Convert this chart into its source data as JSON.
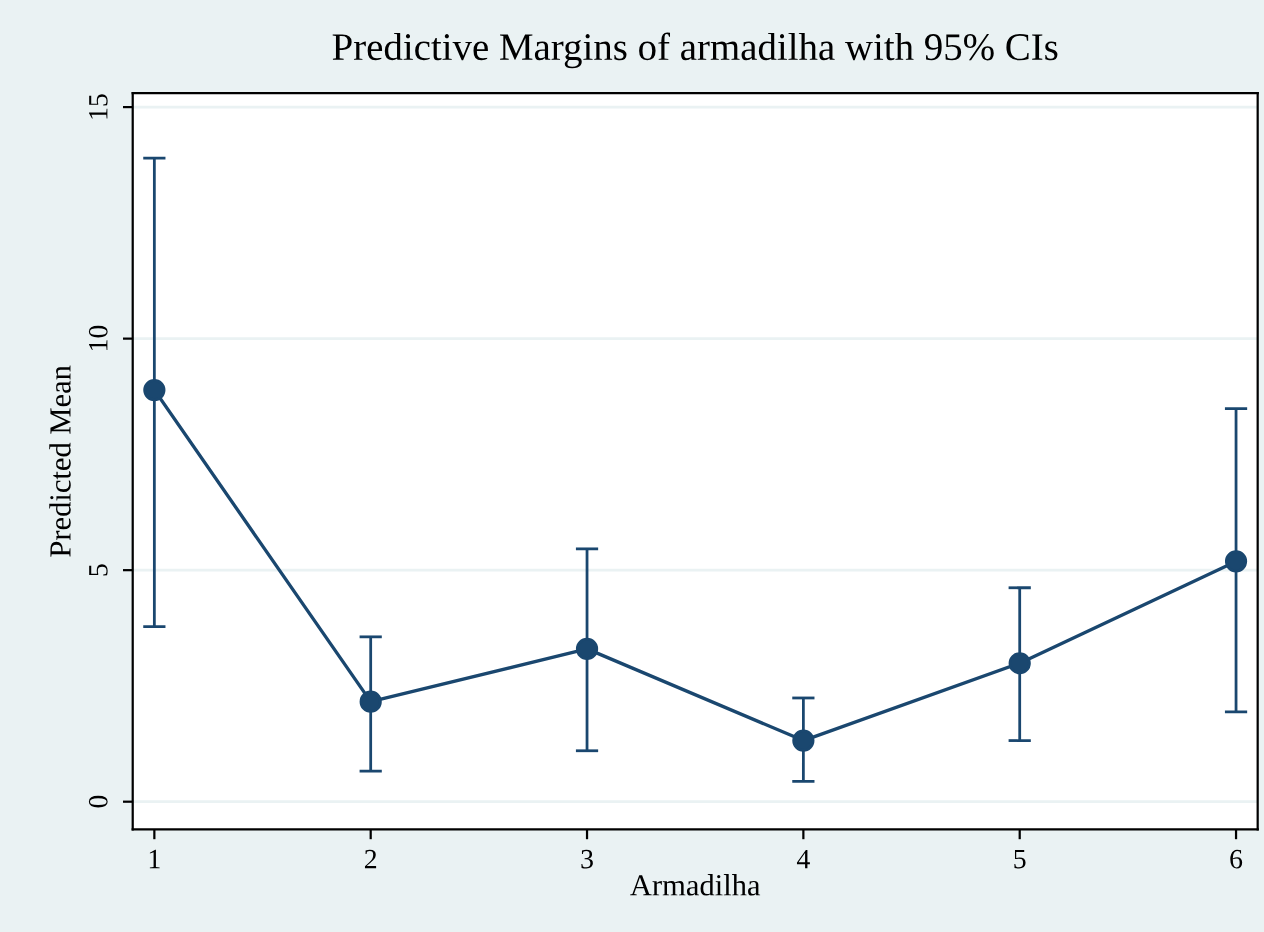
{
  "chart_data": {
    "type": "line",
    "title": "Predictive Margins of armadilha with 95% CIs",
    "xlabel": "Armadilha",
    "ylabel": "Predicted Mean",
    "x": [
      1,
      2,
      3,
      4,
      5,
      6
    ],
    "series": [
      {
        "color": "#1a476f",
        "values": [
          8.89,
          2.16,
          3.3,
          1.32,
          2.99,
          5.19
        ],
        "errors": [
          [
            3.78,
            13.9
          ],
          [
            0.66,
            3.56
          ],
          [
            1.1,
            5.46
          ],
          [
            0.44,
            2.24
          ],
          [
            1.32,
            4.62
          ],
          [
            1.94,
            8.49
          ]
        ]
      }
    ],
    "xlim": [
      0.9,
      6.1
    ],
    "ylim": [
      -0.6,
      15.3
    ],
    "xticks": [
      1,
      2,
      3,
      4,
      5,
      6
    ],
    "yticks": [
      0,
      5,
      10,
      15
    ],
    "grid": "y",
    "marker": "circle",
    "line_style": "solid"
  }
}
